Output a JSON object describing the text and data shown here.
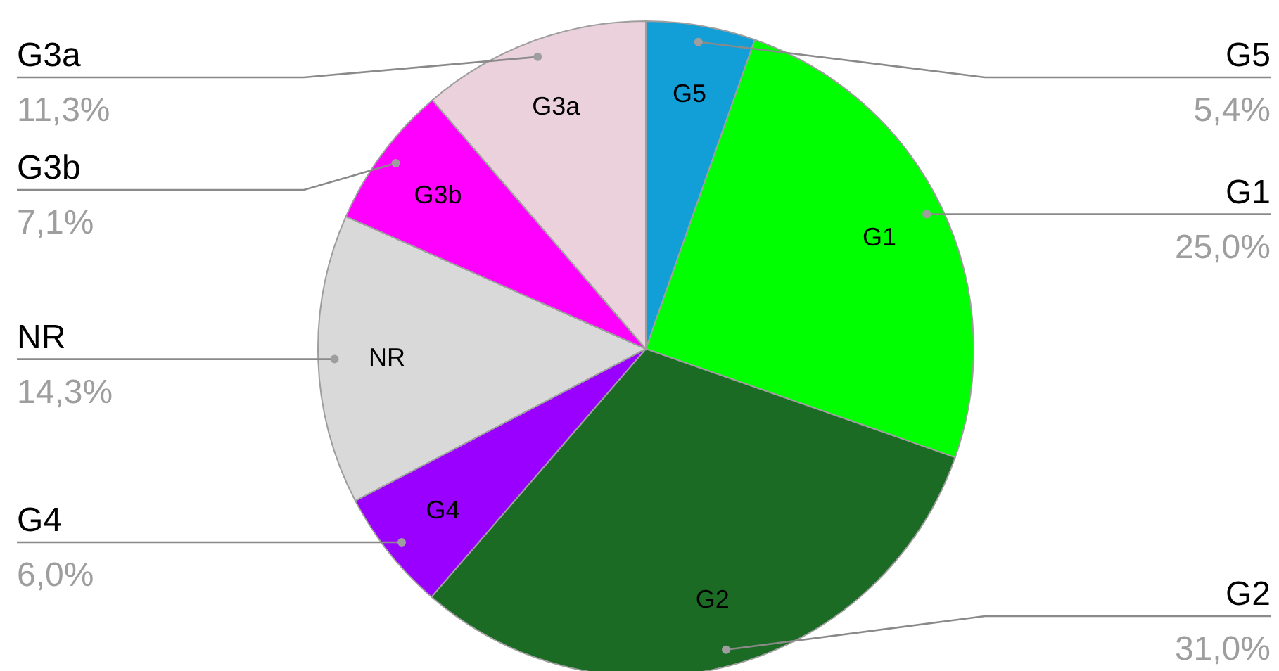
{
  "chart_data": {
    "type": "pie",
    "categories": [
      "G5",
      "G1",
      "G2",
      "G4",
      "NR",
      "G3b",
      "G3a"
    ],
    "values": [
      5.4,
      25.0,
      31.0,
      6.0,
      14.3,
      7.1,
      11.3
    ],
    "colors": [
      "#129fd8",
      "#00ff00",
      "#1b6b24",
      "#9900ff",
      "#d9d9d9",
      "#ff00ff",
      "#ead1dc"
    ],
    "value_labels": [
      "5,4%",
      "25,0%",
      "31,0%",
      "6,0%",
      "14,3%",
      "7,1%",
      "11,3%"
    ]
  }
}
